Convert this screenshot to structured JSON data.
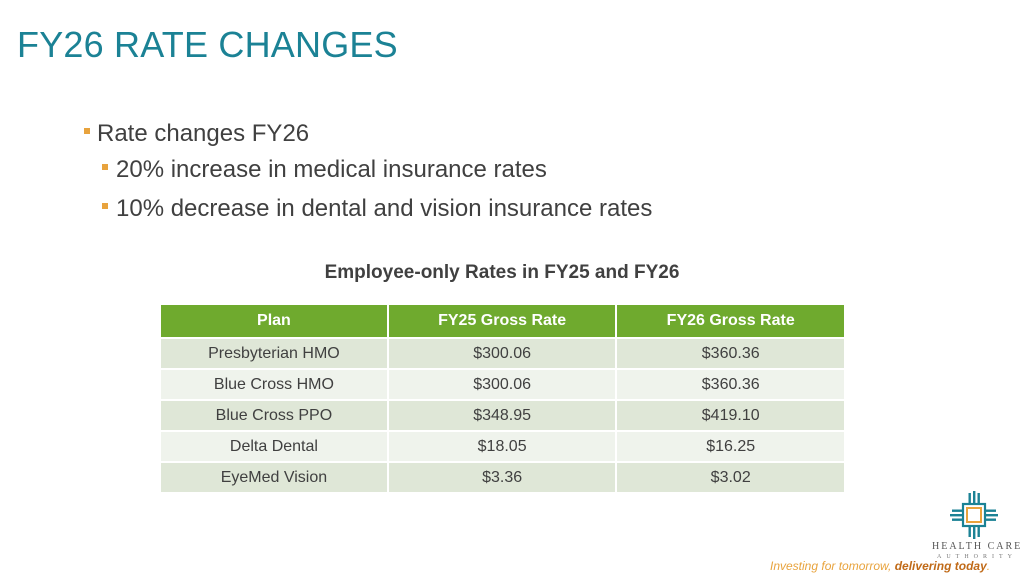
{
  "slide": {
    "title": "FY26 RATE CHANGES",
    "bullets": {
      "main": "Rate changes FY26",
      "sub": [
        "20% increase in medical insurance rates",
        "10% decrease in dental and vision insurance rates"
      ]
    },
    "table": {
      "title": "Employee-only Rates in FY25 and FY26",
      "headers": [
        "Plan",
        "FY25 Gross Rate",
        "FY26 Gross Rate"
      ],
      "rows": [
        [
          "Presbyterian HMO",
          "$300.06",
          "$360.36"
        ],
        [
          "Blue Cross HMO",
          "$300.06",
          "$360.36"
        ],
        [
          "Blue Cross PPO",
          "$348.95",
          "$419.10"
        ],
        [
          "Delta Dental",
          "$18.05",
          "$16.25"
        ],
        [
          "EyeMed Vision",
          "$3.36",
          "$3.02"
        ]
      ]
    },
    "footer": {
      "logo_line1": "HEALTH CARE",
      "logo_line2": "AUTHORITY",
      "tagline_part1": "Investing for tomorrow, ",
      "tagline_part2": "delivering today",
      "tagline_part3": "."
    },
    "colors": {
      "title": "#1b8295",
      "bullet_marker": "#e8a33d",
      "header_bg": "#6faa2e",
      "row_odd": "#dfe7d7",
      "row_even": "#eff3ec"
    }
  }
}
